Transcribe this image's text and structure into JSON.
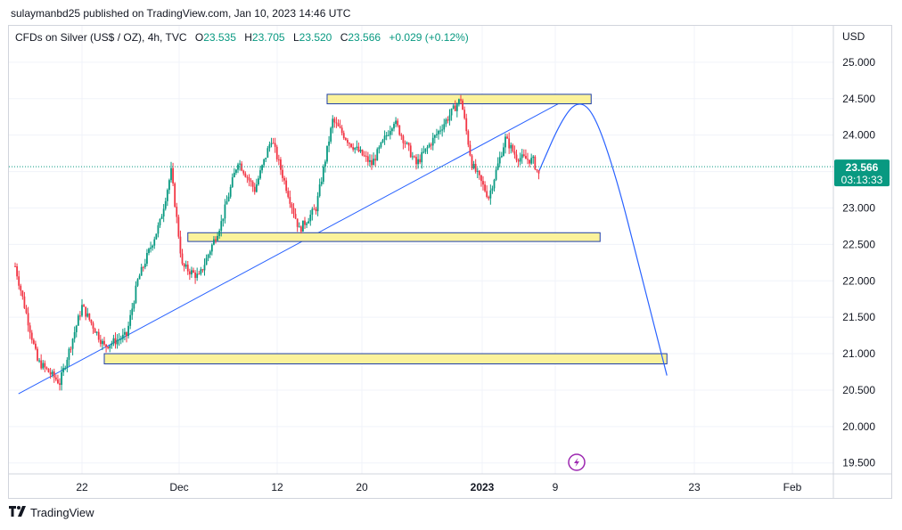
{
  "publisher": "sulaymanbd25 published on TradingView.com, Jan 10, 2023 14:46 UTC",
  "legend": {
    "symbol": "CFDs on Silver (US$ / OZ), 4h, TVC",
    "o_label": "O",
    "o": "23.535",
    "h_label": "H",
    "h": "23.705",
    "l_label": "L",
    "l": "23.520",
    "c_label": "C",
    "c": "23.566",
    "change": "+0.029 (+0.12%)"
  },
  "currency": "USD",
  "price_tag": {
    "price": "23.566",
    "countdown": "03:13:33"
  },
  "footer": "TradingView",
  "colors": {
    "up": "#089981",
    "down": "#f23645",
    "zone_fill": "#fbf29b",
    "zone_border": "#1e3fa8",
    "line": "#2962ff",
    "price_tag": "#089981"
  },
  "chart_data": {
    "type": "candlestick",
    "y_axis": {
      "ticks": [
        "25.000",
        "24.500",
        "24.000",
        "23.500",
        "23.000",
        "22.500",
        "22.000",
        "21.500",
        "21.000",
        "20.500",
        "20.000",
        "19.500"
      ],
      "range": [
        19.35,
        25.5
      ]
    },
    "x_axis": {
      "ticks": [
        "22",
        "Dec",
        "12",
        "20",
        "2023",
        "9",
        "23",
        "Feb"
      ]
    },
    "price_path": [
      [
        20.0,
        22.2
      ],
      [
        22.0,
        20.9
      ],
      [
        24.0,
        20.6
      ],
      [
        26.0,
        21.65
      ],
      [
        28.0,
        21.1
      ],
      [
        30.0,
        21.25
      ],
      [
        31.0,
        22.0
      ],
      [
        33.0,
        22.8
      ],
      [
        34.0,
        23.5
      ],
      [
        35.0,
        22.2
      ],
      [
        36.5,
        22.05
      ],
      [
        38.5,
        22.8
      ],
      [
        40.0,
        23.65
      ],
      [
        41.5,
        23.25
      ],
      [
        43.0,
        23.95
      ],
      [
        44.5,
        23.2
      ],
      [
        45.5,
        22.7
      ],
      [
        47.0,
        23.0
      ],
      [
        48.5,
        24.2
      ],
      [
        50.0,
        23.9
      ],
      [
        52.0,
        23.6
      ],
      [
        54.0,
        24.2
      ],
      [
        56.0,
        23.6
      ],
      [
        58.0,
        24.05
      ],
      [
        60.0,
        24.5
      ],
      [
        61.0,
        23.6
      ],
      [
        62.5,
        23.15
      ],
      [
        64.0,
        23.95
      ],
      [
        65.0,
        23.7
      ],
      [
        66.5,
        23.65
      ],
      [
        67.0,
        23.45
      ]
    ],
    "annotations": [
      {
        "type": "trendline",
        "from": [
          20.3,
          20.45
        ],
        "to": [
          69.6,
          24.5
        ]
      },
      {
        "type": "zone",
        "x": [
          48.0,
          71.7
        ],
        "y": [
          24.43,
          24.56
        ]
      },
      {
        "type": "zone",
        "x": [
          35.5,
          72.5
        ],
        "y": [
          22.54,
          22.66
        ]
      },
      {
        "type": "zone",
        "x": [
          28.0,
          78.5
        ],
        "y": [
          20.86,
          21.0
        ]
      },
      {
        "type": "projection_curve",
        "points": [
          [
            67.0,
            23.5
          ],
          [
            69.0,
            24.2
          ],
          [
            70.5,
            24.48
          ],
          [
            72.0,
            24.3
          ],
          [
            74.0,
            23.4
          ],
          [
            76.0,
            22.2
          ],
          [
            78.5,
            20.7
          ]
        ]
      }
    ],
    "last_price": 23.566,
    "grid": true
  }
}
